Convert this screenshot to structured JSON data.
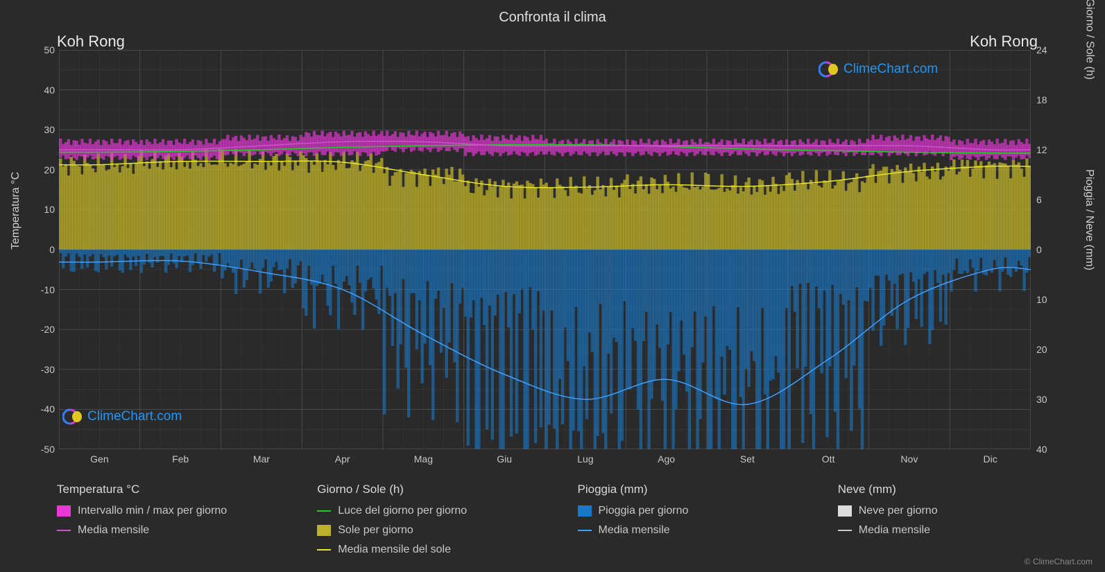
{
  "title": "Confronta il clima",
  "location_left": "Koh Rong",
  "location_right": "Koh Rong",
  "ylabel_left": "Temperatura °C",
  "ylabel_right_top": "Giorno / Sole (h)",
  "ylabel_right_bot": "Pioggia / Neve (mm)",
  "credit": "© ClimeChart.com",
  "logo_text": "ClimeChart.com",
  "plot": {
    "background_color": "#2a2a2a",
    "grid_color": "#555555",
    "grid_minor_color": "#3d3d3d",
    "border_color": "#777777",
    "left_axis": {
      "min": -50,
      "max": 50,
      "step": 10
    },
    "months": [
      "Gen",
      "Feb",
      "Mar",
      "Apr",
      "Mag",
      "Giu",
      "Lug",
      "Ago",
      "Set",
      "Ott",
      "Nov",
      "Dic"
    ],
    "right_top_axis": {
      "min": 0,
      "max": 24,
      "step": 6
    },
    "right_bot_axis": {
      "min": 0,
      "max": 40,
      "step": 10
    },
    "temp_range": {
      "color": "#e838d8",
      "fill_opacity": 0.65,
      "min": [
        23,
        23,
        24,
        24,
        25,
        24,
        24,
        24,
        24,
        24,
        24,
        23
      ],
      "max": [
        27,
        27,
        28,
        29,
        29,
        28,
        27,
        27,
        27,
        27,
        28,
        27
      ]
    },
    "temp_mean": {
      "color": "#d050d0",
      "width": 1.5,
      "values": [
        25,
        25,
        26,
        27,
        27,
        26,
        26,
        26,
        26,
        26,
        26,
        25
      ]
    },
    "daylight": {
      "color": "#1fd01f",
      "width": 1.5,
      "values": [
        11.7,
        11.8,
        12.0,
        12.3,
        12.5,
        12.6,
        12.6,
        12.4,
        12.1,
        11.9,
        11.7,
        11.6
      ]
    },
    "sun_fill": {
      "color": "#bdb02a",
      "fill_opacity": 0.75,
      "values": [
        10.2,
        10.6,
        10.6,
        10.5,
        9.0,
        7.6,
        7.5,
        7.8,
        7.6,
        8.2,
        9.4,
        10.0
      ]
    },
    "sun_mean": {
      "color": "#e6e62a",
      "width": 1.5,
      "values": [
        10.2,
        10.6,
        10.6,
        10.5,
        9.0,
        7.6,
        7.5,
        7.8,
        7.6,
        8.2,
        9.4,
        10.0
      ]
    },
    "rain_fill": {
      "color": "#1a78c8",
      "fill_opacity": 0.6,
      "values": [
        2.5,
        2.3,
        4.5,
        8.0,
        17,
        25,
        30,
        26,
        31,
        22,
        10,
        4
      ]
    },
    "rain_mean": {
      "color": "#3fa0ff",
      "width": 1.5,
      "values": [
        2.5,
        2.3,
        4.5,
        8.0,
        17,
        25,
        30,
        26,
        31,
        22,
        10,
        4
      ]
    },
    "snow_fill": {
      "color": "#dcdcdc",
      "values": [
        0,
        0,
        0,
        0,
        0,
        0,
        0,
        0,
        0,
        0,
        0,
        0
      ]
    },
    "snow_mean": {
      "color": "#cccccc",
      "values": [
        0,
        0,
        0,
        0,
        0,
        0,
        0,
        0,
        0,
        0,
        0,
        0
      ]
    }
  },
  "legend": {
    "col1": {
      "header": "Temperatura °C",
      "items": [
        {
          "swatch": "box",
          "color": "#e838d8",
          "label": "Intervallo min / max per giorno"
        },
        {
          "swatch": "line",
          "color": "#d050d0",
          "label": "Media mensile"
        }
      ]
    },
    "col2": {
      "header": "Giorno / Sole (h)",
      "items": [
        {
          "swatch": "line",
          "color": "#1fd01f",
          "label": "Luce del giorno per giorno"
        },
        {
          "swatch": "box",
          "color": "#bdb02a",
          "label": "Sole per giorno"
        },
        {
          "swatch": "line",
          "color": "#e6e62a",
          "label": "Media mensile del sole"
        }
      ]
    },
    "col3": {
      "header": "Pioggia (mm)",
      "items": [
        {
          "swatch": "box",
          "color": "#1a78c8",
          "label": "Pioggia per giorno"
        },
        {
          "swatch": "line",
          "color": "#3fa0ff",
          "label": "Media mensile"
        }
      ]
    },
    "col4": {
      "header": "Neve (mm)",
      "items": [
        {
          "swatch": "box",
          "color": "#dcdcdc",
          "label": "Neve per giorno"
        },
        {
          "swatch": "line",
          "color": "#cccccc",
          "label": "Media mensile"
        }
      ]
    }
  }
}
